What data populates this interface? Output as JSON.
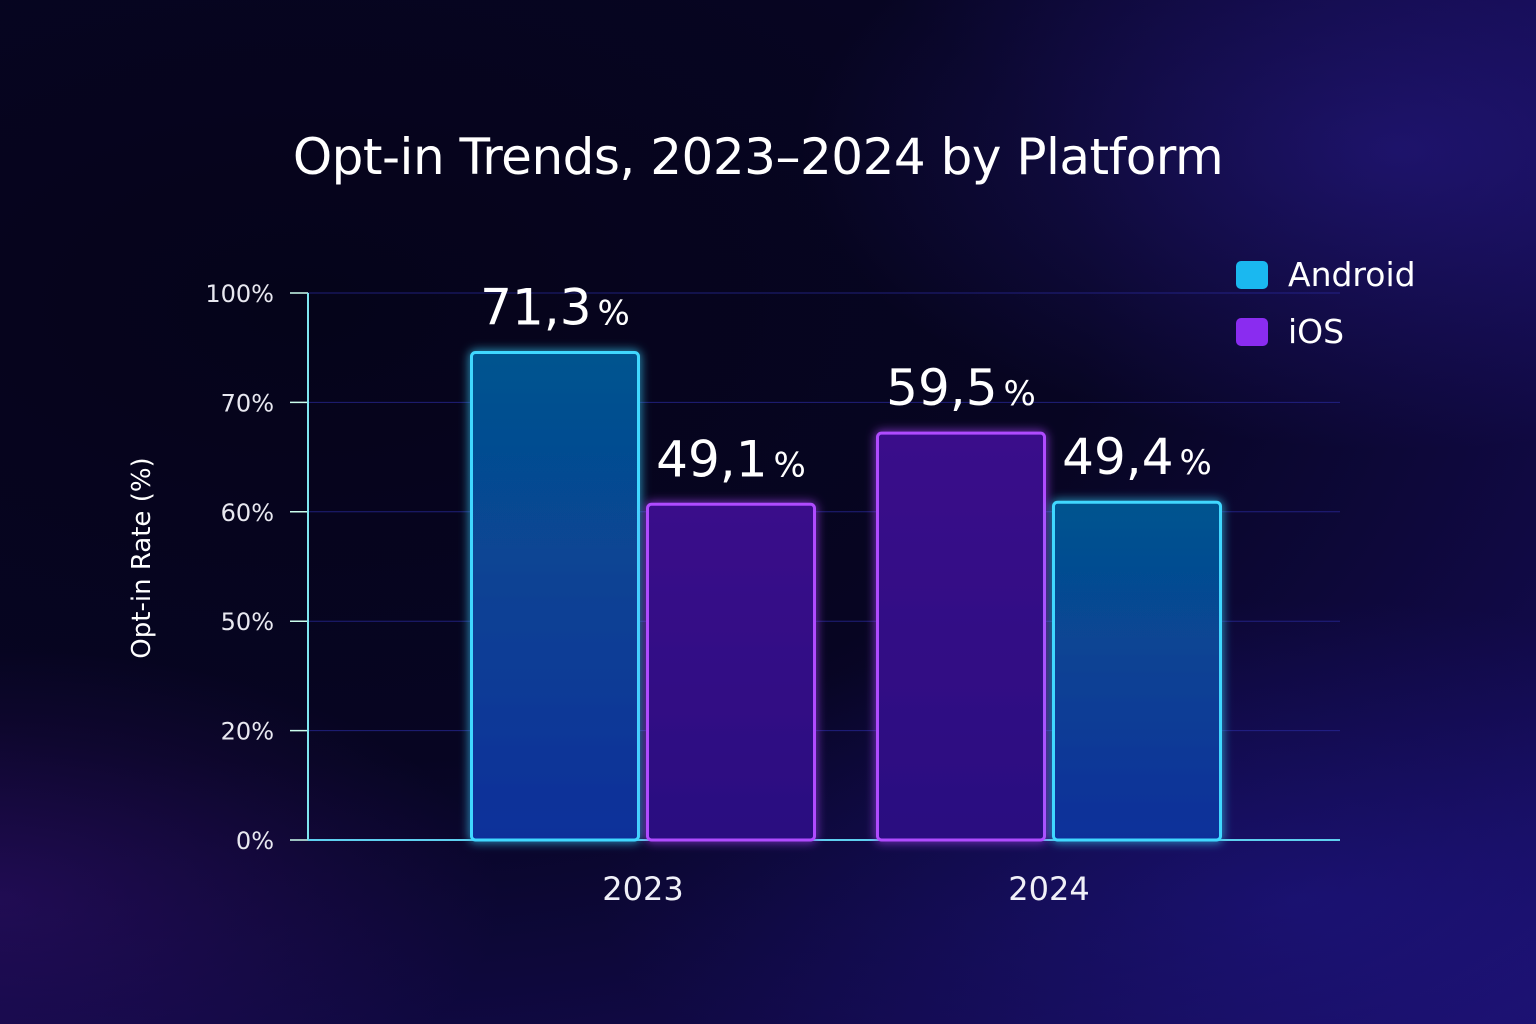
{
  "chart_data": {
    "type": "bar",
    "title": "Opt-in Trends, 2023–2024 by Platform",
    "ylabel": "Opt-in Rate (%)",
    "xlabel": "",
    "y_ticks": [
      "100%",
      "70%",
      "60%",
      "50%",
      "20%",
      "0%"
    ],
    "categories": [
      "2023",
      "2024"
    ],
    "grid": true,
    "legend_position": "top-right",
    "legend": [
      {
        "name": "Android",
        "color": "#1ab8f0"
      },
      {
        "name": "iOS",
        "color": "#8a2cf0"
      }
    ],
    "bars": [
      {
        "category": "2023",
        "series": "Android",
        "value": 71.3,
        "label": "71,3",
        "unit": "%"
      },
      {
        "category": "2023",
        "series": "iOS",
        "value": 49.1,
        "label": "49,1",
        "unit": "%"
      },
      {
        "category": "2024",
        "series": "iOS",
        "value": 59.5,
        "label": "59,5",
        "unit": "%"
      },
      {
        "category": "2024",
        "series": "Android",
        "value": 49.4,
        "label": "49,4",
        "unit": "%"
      }
    ]
  }
}
